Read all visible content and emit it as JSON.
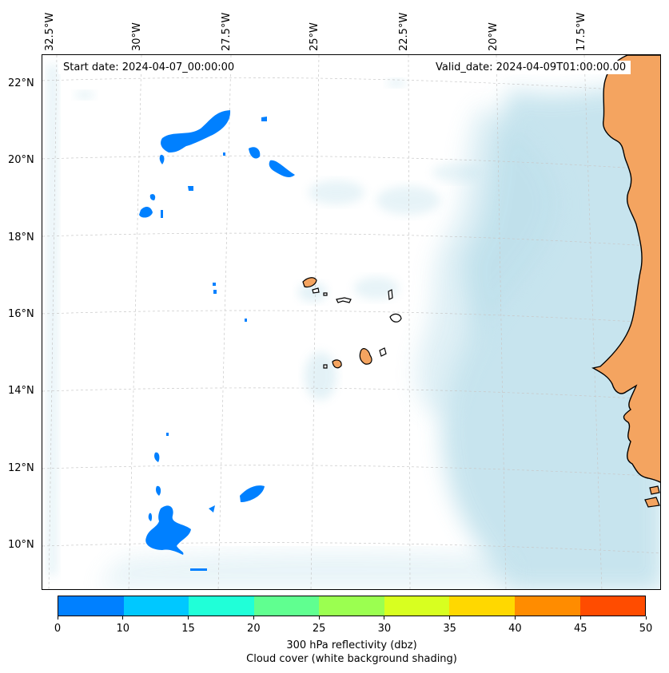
{
  "map": {
    "lon_labels": [
      "32.5°W",
      "30°W",
      "27.5°W",
      "25°W",
      "22.5°W",
      "20°W",
      "17.5°W"
    ],
    "lat_labels": [
      "22°N",
      "20°N",
      "18°N",
      "16°N",
      "14°N",
      "12°N",
      "10°N"
    ],
    "start_date": "Start date: 2024-04-07_00:00:00",
    "valid_date": "Valid_date: 2024-04-09T01:00:00.00",
    "colors": {
      "land": "#f4a460",
      "cloud": "#add8e6",
      "reflectivity_low": "#0080ff",
      "coast": "#000000"
    }
  },
  "colorbar": {
    "ticks": [
      "0",
      "10",
      "15",
      "20",
      "25",
      "30",
      "35",
      "40",
      "45",
      "50"
    ],
    "colors": [
      "#0080ff",
      "#00c8ff",
      "#20ffd8",
      "#60ff90",
      "#9bff50",
      "#d8ff20",
      "#ffd800",
      "#ff8c00",
      "#ff4c00"
    ],
    "label_line1": "300 hPa reflectivity (dbz)",
    "label_line2": "Cloud cover (white background shading)"
  }
}
